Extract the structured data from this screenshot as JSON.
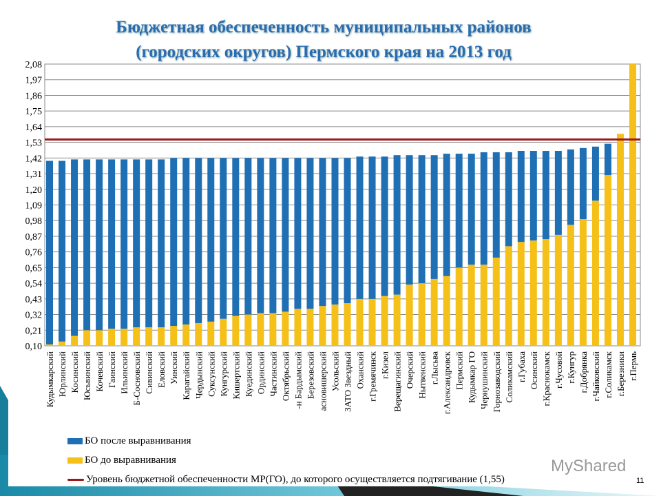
{
  "chart_data": {
    "type": "bar",
    "stacked_overlay": true,
    "title": "Бюджетная обеспеченность муниципальных районов (городских округов) Пермского края на 2013 год",
    "title_lines": [
      "Бюджетная обеспеченность муниципальных районов",
      "(городских округов) Пермского края на 2013 год"
    ],
    "ylim": [
      0.1,
      2.08
    ],
    "yticks": [
      "0,10",
      "0,21",
      "0,32",
      "0,43",
      "0,54",
      "0,65",
      "0,76",
      "0,87",
      "0,98",
      "1,09",
      "1,20",
      "1,31",
      "1,42",
      "1,53",
      "1,64",
      "1,75",
      "1,86",
      "1,97",
      "2,08"
    ],
    "grid": true,
    "legend_placement": "bottom",
    "categories": [
      "Кудымкарский",
      "Юрлинский",
      "Косинский",
      "Юсьвинский",
      "Кочевский",
      "Гаинский",
      "Ильинский",
      "Б-Сосновский",
      "Сивинский",
      "Еловский",
      "Уинский",
      "Карагайский",
      "Чердынский",
      "Суксунский",
      "Кунгурский",
      "Кишертский",
      "Куединский",
      "Ординский",
      "Частинский",
      "Октябрьский",
      "-н Бардымский",
      "Березовский",
      "асновишерский",
      "Усольский",
      "ЗАТО Звездный",
      "Оханский",
      "г.Гремячинск",
      "г.Кизел",
      "Верещагинский",
      "Очерский",
      "Нытвенский",
      "г.Лысьва",
      "г.Александровск",
      "Пермский",
      "Кудымкар ГО",
      "Чернушинский",
      "Горнозаводский",
      "Соликамский",
      "г.Губаха",
      "Осинский",
      "г.Краснокамск",
      "г.Чусовой",
      "г.Кунгур",
      "г.Добрянка",
      "г.Чайковский",
      "г.Соликамск",
      "г.Березники",
      "г.Пермь"
    ],
    "series": [
      {
        "name": "БО после выравнивания",
        "color": "#1f6fb4",
        "values": [
          1.4,
          1.4,
          1.41,
          1.41,
          1.41,
          1.41,
          1.41,
          1.41,
          1.41,
          1.41,
          1.42,
          1.42,
          1.42,
          1.42,
          1.42,
          1.42,
          1.42,
          1.42,
          1.42,
          1.42,
          1.42,
          1.42,
          1.42,
          1.42,
          1.42,
          1.43,
          1.43,
          1.43,
          1.44,
          1.44,
          1.44,
          1.44,
          1.45,
          1.45,
          1.45,
          1.46,
          1.46,
          1.46,
          1.47,
          1.47,
          1.47,
          1.47,
          1.48,
          1.49,
          1.5,
          1.52,
          1.59,
          2.08
        ]
      },
      {
        "name": "БО до выравнивания",
        "color": "#f5c018",
        "values": [
          0.11,
          0.13,
          0.17,
          0.21,
          0.21,
          0.22,
          0.22,
          0.23,
          0.23,
          0.23,
          0.24,
          0.25,
          0.26,
          0.27,
          0.29,
          0.31,
          0.32,
          0.33,
          0.33,
          0.34,
          0.36,
          0.36,
          0.38,
          0.39,
          0.4,
          0.43,
          0.43,
          0.45,
          0.46,
          0.53,
          0.54,
          0.57,
          0.59,
          0.65,
          0.67,
          0.67,
          0.72,
          0.8,
          0.83,
          0.84,
          0.85,
          0.88,
          0.95,
          0.99,
          1.12,
          1.3,
          1.59,
          2.08
        ]
      }
    ],
    "reference_line": {
      "name": "Уровень бюджетной обеспеченности МР(ГО), до которого осуществляется подтягивание (1,55)",
      "value": 1.55,
      "color": "#a01818"
    }
  },
  "page_number": "11",
  "watermark": "MyShared"
}
